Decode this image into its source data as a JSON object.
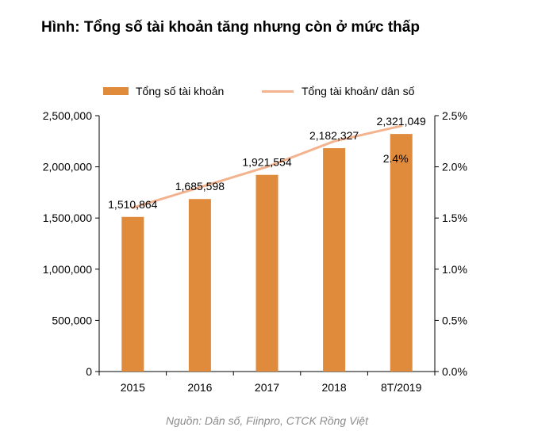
{
  "title": "Hình: Tổng số tài khoản tăng nhưng còn ở mức thấp",
  "source": "Nguồn: Dân số, Fiinpro, CTCK Rồng Việt",
  "legend": {
    "bar_label": "Tổng số tài khoản",
    "line_label": "Tổng tài khoản/ dân số"
  },
  "colors": {
    "bar": "#E08A3C",
    "line": "#F3B38E",
    "axis": "#000000"
  },
  "chart_data": {
    "type": "bar",
    "categories": [
      "2015",
      "2016",
      "2017",
      "2018",
      "8T/2019"
    ],
    "series": [
      {
        "name": "Tổng số tài khoản",
        "type": "bar",
        "axis": "left",
        "values": [
          1510864,
          1685598,
          1921554,
          2182327,
          2321049
        ],
        "labels": [
          "1,510,864",
          "1,685,598",
          "1,921,554",
          "2,182,327",
          "2,321,049"
        ]
      },
      {
        "name": "Tổng tài khoản/ dân số",
        "type": "line",
        "axis": "right",
        "values": [
          1.6,
          1.8,
          2.0,
          2.25,
          2.4
        ],
        "labels": [
          "",
          "",
          "",
          "",
          "2.4%"
        ]
      }
    ],
    "y_left": {
      "min": 0,
      "max": 2500000,
      "ticks": [
        0,
        500000,
        1000000,
        1500000,
        2000000,
        2500000
      ],
      "tick_labels": [
        "0",
        "500,000",
        "1,000,000",
        "1,500,000",
        "2,000,000",
        "2,500,000"
      ]
    },
    "y_right": {
      "min": 0,
      "max": 2.5,
      "ticks": [
        0,
        0.5,
        1.0,
        1.5,
        2.0,
        2.5
      ],
      "tick_labels": [
        "0.0%",
        "0.5%",
        "1.0%",
        "1.5%",
        "2.0%",
        "2.5%"
      ]
    },
    "grid": false,
    "legend_position": "top"
  }
}
